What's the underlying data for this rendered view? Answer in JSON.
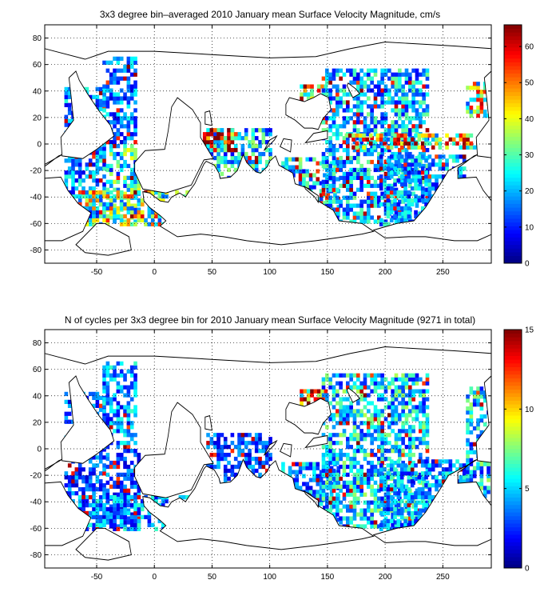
{
  "chart_data": [
    {
      "type": "heatmap",
      "title": "3x3 degree bin–averaged 2010 January mean Surface Velocity Magnitude, cm/s",
      "xlabel": "",
      "ylabel": "",
      "xlim": [
        -95,
        292
      ],
      "ylim": [
        -90,
        90
      ],
      "x_ticks": [
        -50,
        0,
        50,
        100,
        150,
        200,
        250
      ],
      "y_ticks": [
        -80,
        -60,
        -40,
        -20,
        0,
        20,
        40,
        60,
        80
      ],
      "bin_size_deg": 3,
      "colorbar": {
        "min": 0,
        "max": 66,
        "ticks": [
          0,
          10,
          20,
          30,
          40,
          50,
          60
        ],
        "colormap": "jet"
      },
      "grid": "dotted",
      "regions": [
        {
          "lon": [
            -78,
            -42
          ],
          "lat": [
            -62,
            42
          ],
          "level": 18
        },
        {
          "lon": [
            -45,
            -15
          ],
          "lat": [
            0,
            66
          ],
          "level": 16
        },
        {
          "lon": [
            -42,
            -12
          ],
          "lat": [
            -60,
            -2
          ],
          "level": 26
        },
        {
          "lon": [
            -66,
            12
          ],
          "lat": [
            -62,
            -36
          ],
          "level": 34
        },
        {
          "lon": [
            18,
            90
          ],
          "lat": [
            -62,
            -36
          ],
          "level": 30
        },
        {
          "lon": [
            45,
            100
          ],
          "lat": [
            -30,
            12
          ],
          "level": 22
        },
        {
          "lon": [
            42,
            70
          ],
          "lat": [
            -6,
            12
          ],
          "level": 52
        },
        {
          "lon": [
            110,
            160
          ],
          "lat": [
            -58,
            -12
          ],
          "level": 22
        },
        {
          "lon": [
            126,
            150
          ],
          "lat": [
            15,
            44
          ],
          "level": 40
        },
        {
          "lon": [
            145,
            238
          ],
          "lat": [
            -60,
            56
          ],
          "level": 20
        },
        {
          "lon": [
            165,
            280
          ],
          "lat": [
            -4,
            6
          ],
          "level": 40
        },
        {
          "lon": [
            195,
            270
          ],
          "lat": [
            -62,
            -8
          ],
          "level": 18
        },
        {
          "lon": [
            270,
            290
          ],
          "lat": [
            20,
            45
          ],
          "level": 36
        }
      ]
    },
    {
      "type": "heatmap",
      "title": "N of cycles per 3x3 degree bin for 2010 January mean Surface Velocity Magnitude (9271 in total)",
      "xlabel": "",
      "ylabel": "",
      "xlim": [
        -95,
        292
      ],
      "ylim": [
        -90,
        90
      ],
      "x_ticks": [
        -50,
        0,
        50,
        100,
        150,
        200,
        250
      ],
      "y_ticks": [
        -80,
        -60,
        -40,
        -20,
        0,
        20,
        40,
        60,
        80
      ],
      "bin_size_deg": 3,
      "colorbar": {
        "min": 0,
        "max": 15,
        "ticks": [
          0,
          5,
          10,
          15
        ],
        "colormap": "jet"
      },
      "grid": "dotted",
      "regions": [
        {
          "lon": [
            -78,
            -42
          ],
          "lat": [
            -62,
            42
          ],
          "level": 3
        },
        {
          "lon": [
            -45,
            -15
          ],
          "lat": [
            0,
            66
          ],
          "level": 4
        },
        {
          "lon": [
            -42,
            -12
          ],
          "lat": [
            -60,
            -2
          ],
          "level": 3
        },
        {
          "lon": [
            -66,
            12
          ],
          "lat": [
            -62,
            -36
          ],
          "level": 4
        },
        {
          "lon": [
            18,
            90
          ],
          "lat": [
            -62,
            -36
          ],
          "level": 4
        },
        {
          "lon": [
            45,
            100
          ],
          "lat": [
            -30,
            12
          ],
          "level": 3
        },
        {
          "lon": [
            110,
            160
          ],
          "lat": [
            -58,
            -12
          ],
          "level": 4
        },
        {
          "lon": [
            126,
            150
          ],
          "lat": [
            15,
            44
          ],
          "level": 11
        },
        {
          "lon": [
            145,
            238
          ],
          "lat": [
            -60,
            56
          ],
          "level": 5
        },
        {
          "lon": [
            195,
            270
          ],
          "lat": [
            -62,
            -8
          ],
          "level": 4
        },
        {
          "lon": [
            270,
            290
          ],
          "lat": [
            -40,
            45
          ],
          "level": 5
        }
      ]
    }
  ]
}
